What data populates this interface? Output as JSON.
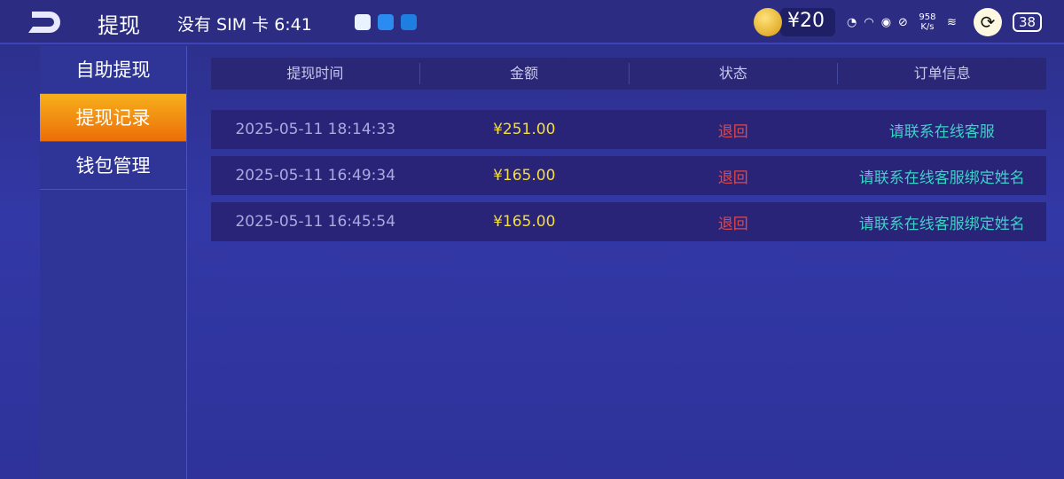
{
  "header": {
    "title": "提现",
    "back_icon": "back-arrow-icon"
  },
  "statusbar": {
    "carrier": "没有 SIM 卡",
    "time": "6:41",
    "speed": "958 K/s",
    "battery": "38",
    "coins": "¥20"
  },
  "sidebar": {
    "items": [
      {
        "label": "自助提现"
      },
      {
        "label": "提现记录",
        "active": true
      },
      {
        "label": "钱包管理"
      }
    ]
  },
  "table": {
    "columns": [
      "提现时间",
      "金额",
      "状态",
      "订单信息"
    ],
    "rows": [
      {
        "time": "2025-05-11 18:14:33",
        "amount": "¥251.00",
        "status": "退回",
        "info": "请联系在线客服"
      },
      {
        "time": "2025-05-11 16:49:34",
        "amount": "¥165.00",
        "status": "退回",
        "info": "请联系在线客服绑定姓名"
      },
      {
        "time": "2025-05-11 16:45:54",
        "amount": "¥165.00",
        "status": "退回",
        "info": "请联系在线客服绑定姓名"
      }
    ]
  },
  "colors": {
    "accent": "#f59a1a",
    "amount": "#f2dd3c",
    "status": "#e04848",
    "info": "#3ed1c8"
  }
}
